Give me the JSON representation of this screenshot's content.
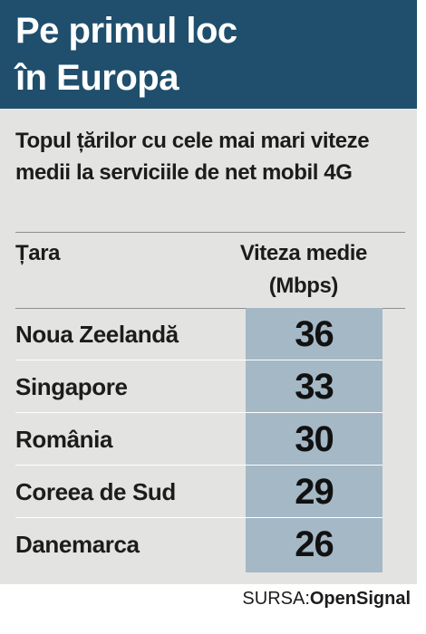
{
  "header": {
    "title_line1": "Pe primul loc",
    "title_line2": "în Europa"
  },
  "subtitle": "Topul țărilor cu cele mai mari viteze medii la serviciile de net mobil 4G",
  "table": {
    "columns": {
      "country": "Țara",
      "speed_line1": "Viteza medie",
      "speed_line2": "(Mbps)"
    },
    "rows": [
      {
        "country": "Noua Zeelandă",
        "value": "36"
      },
      {
        "country": "Singapore",
        "value": "33"
      },
      {
        "country": "România",
        "value": "30"
      },
      {
        "country": "Coreea de Sud",
        "value": "29"
      },
      {
        "country": "Danemarca",
        "value": "26"
      }
    ]
  },
  "source": {
    "prefix": "SURSA:",
    "name": "OpenSignal"
  },
  "colors": {
    "header_bg": "#1f4f6d",
    "card_bg": "#e3e3e1",
    "value_band": "#a4b8c6"
  }
}
